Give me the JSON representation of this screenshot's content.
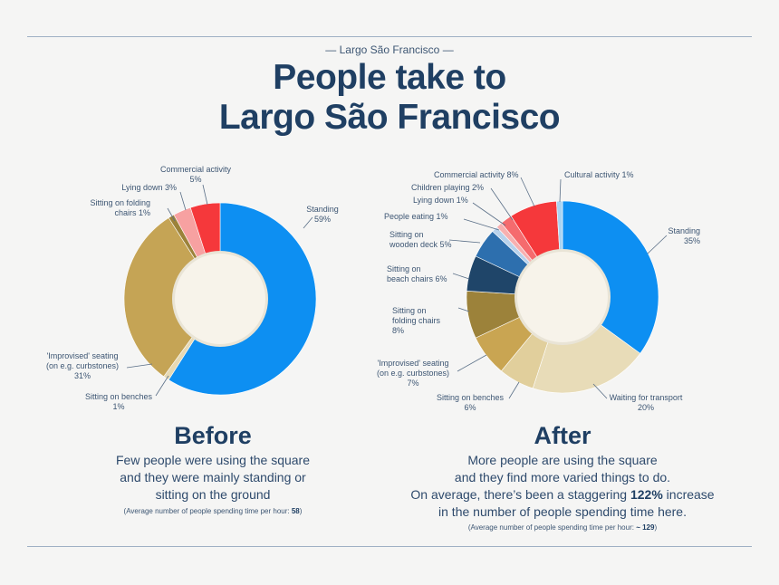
{
  "header": {
    "kicker": "— Largo São Francisco —",
    "title_line1": "People take to",
    "title_line2": "Largo São Francisco"
  },
  "before": {
    "heading": "Before",
    "desc_line1": "Few people were using the square",
    "desc_line2": "and they were mainly standing or",
    "desc_line3": "sitting on the ground",
    "note_prefix": "(Average number of people spending time per hour: ",
    "note_value": "58",
    "note_suffix": ")"
  },
  "after": {
    "heading": "After",
    "desc_line1": "More people are using the square",
    "desc_line2": "and they find more varied things to do.",
    "desc_line3_prefix": "On average, there’s been a staggering ",
    "desc_line3_bold": "122%",
    "desc_line3_suffix": " increase",
    "desc_line4": "in the number of people spending time here.",
    "note_prefix": "(Average number of people spending time per hour: ",
    "note_value": "~ 129",
    "note_suffix": ")"
  },
  "chart_data": [
    {
      "type": "pie",
      "donut": true,
      "name": "Before",
      "slices": [
        {
          "label": "Standing",
          "value": 59,
          "color": "#0d8ff2"
        },
        {
          "label": "Sitting on benches",
          "value": 1,
          "color": "#e6d9b4"
        },
        {
          "label": "'Improvised' seating (on e.g. curbstones)",
          "value": 31,
          "color": "#c5a455"
        },
        {
          "label": "Sitting on folding chairs",
          "value": 1,
          "color": "#9c823a"
        },
        {
          "label": "Lying down",
          "value": 3,
          "color": "#f7a1a1"
        },
        {
          "label": "Commercial activity",
          "value": 5,
          "color": "#f5383b"
        }
      ],
      "labels": [
        {
          "lines": [
            "Standing",
            "59%"
          ],
          "anchor": "middle"
        },
        {
          "lines": [
            "Sitting on benches",
            "1%"
          ],
          "anchor": "middle"
        },
        {
          "lines": [
            "'Improvised' seating",
            "(on e.g. curbstones)",
            "31%"
          ],
          "anchor": "middle"
        },
        {
          "lines": [
            "Sitting on folding",
            "chairs 1%"
          ],
          "anchor": "end"
        },
        {
          "lines": [
            "Lying down 3%"
          ],
          "anchor": "end"
        },
        {
          "lines": [
            "Commercial activity",
            "5%"
          ],
          "anchor": "middle"
        }
      ]
    },
    {
      "type": "pie",
      "donut": true,
      "name": "After",
      "slices": [
        {
          "label": "Standing",
          "value": 35,
          "color": "#0d8ff2"
        },
        {
          "label": "Waiting for transport",
          "value": 20,
          "color": "#e8dcb8"
        },
        {
          "label": "Sitting on benches",
          "value": 6,
          "color": "#e1cf9c"
        },
        {
          "label": "'Improvised' seating (on e.g. curbstones)",
          "value": 7,
          "color": "#c9a552"
        },
        {
          "label": "Sitting on folding chairs",
          "value": 8,
          "color": "#9c823a"
        },
        {
          "label": "Sitting on beach chairs",
          "value": 6,
          "color": "#1f4569"
        },
        {
          "label": "Sitting on wooden deck",
          "value": 5,
          "color": "#2d6fae"
        },
        {
          "label": "People eating",
          "value": 1,
          "color": "#b8d2ec"
        },
        {
          "label": "Lying down",
          "value": 1,
          "color": "#f7b0b0"
        },
        {
          "label": "Children playing",
          "value": 2,
          "color": "#f56b6e"
        },
        {
          "label": "Commercial activity",
          "value": 8,
          "color": "#f5383b"
        },
        {
          "label": "Cultural activity",
          "value": 1,
          "color": "#a9d3f2"
        }
      ],
      "labels": [
        {
          "lines": [
            "Standing",
            "35%"
          ],
          "anchor": "end"
        },
        {
          "lines": [
            "Waiting for transport",
            "20%"
          ],
          "anchor": "middle"
        },
        {
          "lines": [
            "Sitting on benches",
            "6%"
          ],
          "anchor": "middle"
        },
        {
          "lines": [
            "'Improvised' seating",
            "(on e.g. curbstones)",
            "7%"
          ],
          "anchor": "middle"
        },
        {
          "lines": [
            "Sitting on",
            "folding chairs",
            "8%"
          ],
          "anchor": "start"
        },
        {
          "lines": [
            "Sitting on",
            "beach chairs 6%"
          ],
          "anchor": "start"
        },
        {
          "lines": [
            "Sitting on",
            "wooden deck 5%"
          ],
          "anchor": "start"
        },
        {
          "lines": [
            "People eating 1%"
          ],
          "anchor": "start"
        },
        {
          "lines": [
            "Lying down 1%"
          ],
          "anchor": "start"
        },
        {
          "lines": [
            "Children playing 2%"
          ],
          "anchor": "start"
        },
        {
          "lines": [
            "Commercial activity 8%"
          ],
          "anchor": "start"
        },
        {
          "lines": [
            "Cultural activity 1%"
          ],
          "anchor": "start"
        }
      ]
    }
  ]
}
